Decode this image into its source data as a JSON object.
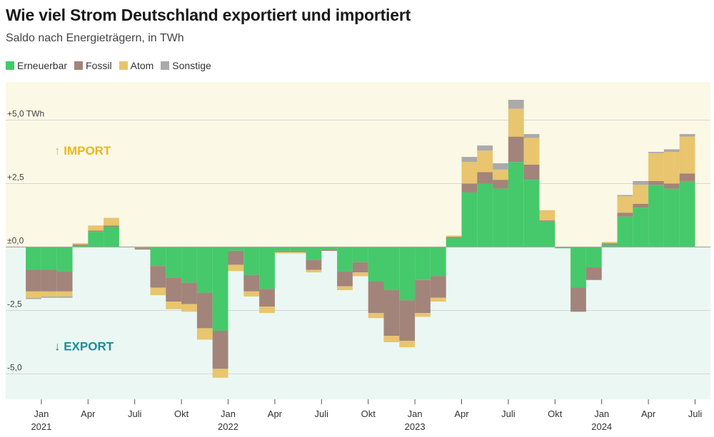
{
  "title": "Wie viel Strom Deutschland exportiert und importiert",
  "subtitle": "Saldo nach Energieträgern, in TWh",
  "colors": {
    "import_bg": "#fcf8e6",
    "export_bg": "#ebf7f3",
    "import_label": "#e8b81c",
    "export_label": "#1e8a9e",
    "grid": "#d6d6d6",
    "zero": "#a8a8a8"
  },
  "chart_data": {
    "type": "bar",
    "stacked": true,
    "ylim": [
      -6.0,
      6.5
    ],
    "yticks": [
      {
        "value": 5.0,
        "label": "+5,0 TWh"
      },
      {
        "value": 2.5,
        "label": "+2,5"
      },
      {
        "value": 0.0,
        "label": "±0,0"
      },
      {
        "value": -2.5,
        "label": "-2,5"
      },
      {
        "value": -5.0,
        "label": "-5,0"
      }
    ],
    "regions": [
      {
        "label": "↑ IMPORT",
        "value": 3.8
      },
      {
        "label": "↓ EXPORT",
        "value": -3.9
      }
    ],
    "months": [
      "2020-12",
      "2021-01",
      "2021-02",
      "2021-03",
      "2021-04",
      "2021-05",
      "2021-06",
      "2021-07",
      "2021-08",
      "2021-09",
      "2021-10",
      "2021-11",
      "2021-12",
      "2022-01",
      "2022-02",
      "2022-03",
      "2022-04",
      "2022-05",
      "2022-06",
      "2022-07",
      "2022-08",
      "2022-09",
      "2022-10",
      "2022-11",
      "2022-12",
      "2023-01",
      "2023-02",
      "2023-03",
      "2023-04",
      "2023-05",
      "2023-06",
      "2023-07",
      "2023-08",
      "2023-09",
      "2023-10",
      "2023-11",
      "2023-12",
      "2024-01",
      "2024-02",
      "2024-03",
      "2024-04",
      "2024-05",
      "2024-06",
      "2024-07"
    ],
    "x_ticks": [
      {
        "label": "Jan",
        "year": "2021",
        "index": 1
      },
      {
        "label": "Apr",
        "year": "",
        "index": 4
      },
      {
        "label": "Juli",
        "year": "",
        "index": 7
      },
      {
        "label": "Okt",
        "year": "",
        "index": 10
      },
      {
        "label": "Jan",
        "year": "2022",
        "index": 13
      },
      {
        "label": "Apr",
        "year": "",
        "index": 16
      },
      {
        "label": "Juli",
        "year": "",
        "index": 19
      },
      {
        "label": "Okt",
        "year": "",
        "index": 22
      },
      {
        "label": "Jan",
        "year": "2023",
        "index": 25
      },
      {
        "label": "Apr",
        "year": "",
        "index": 28
      },
      {
        "label": "Juli",
        "year": "",
        "index": 31
      },
      {
        "label": "Okt",
        "year": "",
        "index": 34
      },
      {
        "label": "Jan",
        "year": "2024",
        "index": 37
      },
      {
        "label": "Apr",
        "year": "",
        "index": 40
      },
      {
        "label": "Juli",
        "year": "",
        "index": 43
      }
    ],
    "legend_position": "top-left",
    "series": [
      {
        "name": "Erneuerbar",
        "color": "#45c96b",
        "values": [
          -0.9,
          -0.9,
          -0.95,
          0.05,
          0.6,
          0.8,
          0.0,
          -0.05,
          -0.75,
          -1.2,
          -1.4,
          -1.8,
          -3.3,
          -0.15,
          -1.1,
          -1.65,
          -0.15,
          -0.15,
          -0.5,
          -0.1,
          -0.95,
          -0.6,
          -1.35,
          -1.7,
          -2.1,
          -1.3,
          -1.15,
          0.35,
          2.15,
          2.5,
          2.3,
          3.35,
          2.65,
          1.0,
          -0.05,
          -1.6,
          -0.8,
          0.1,
          1.2,
          1.55,
          2.45,
          2.3,
          2.6,
          0.0
        ]
      },
      {
        "name": "Fossil",
        "color": "#a3847a",
        "values": [
          -0.85,
          -0.85,
          -0.8,
          0.05,
          0.05,
          0.05,
          0.0,
          -0.05,
          -0.85,
          -0.95,
          -0.85,
          -1.4,
          -1.5,
          -0.55,
          -0.65,
          -0.7,
          -0.05,
          -0.05,
          -0.4,
          -0.05,
          -0.6,
          -0.4,
          -1.25,
          -1.8,
          -1.6,
          -1.3,
          -0.85,
          0.05,
          0.35,
          0.45,
          0.35,
          1.0,
          0.6,
          0.05,
          0.0,
          -0.95,
          -0.5,
          0.05,
          0.15,
          0.15,
          0.15,
          0.2,
          0.3,
          0.0
        ]
      },
      {
        "name": "Atom",
        "color": "#e8c56e",
        "values": [
          -0.25,
          -0.2,
          -0.2,
          0.05,
          0.2,
          0.3,
          0.0,
          0.0,
          -0.3,
          -0.3,
          -0.3,
          -0.45,
          -0.35,
          -0.25,
          -0.2,
          -0.25,
          -0.05,
          -0.05,
          -0.1,
          0.0,
          -0.15,
          -0.15,
          -0.2,
          -0.25,
          -0.25,
          -0.15,
          -0.15,
          0.05,
          0.85,
          0.85,
          0.4,
          1.1,
          1.05,
          0.4,
          0.0,
          0.0,
          0.0,
          0.05,
          0.65,
          0.75,
          1.1,
          1.25,
          1.45,
          0.0
        ]
      },
      {
        "name": "Sonstige",
        "color": "#aaaaaa",
        "values": [
          -0.05,
          -0.05,
          -0.05,
          0.0,
          0.0,
          0.0,
          0.0,
          0.0,
          0.0,
          0.0,
          0.0,
          0.0,
          0.0,
          0.0,
          0.0,
          0.0,
          0.0,
          0.0,
          0.0,
          0.0,
          0.0,
          0.0,
          0.0,
          0.0,
          0.0,
          0.0,
          0.0,
          0.0,
          0.2,
          0.2,
          0.25,
          0.35,
          0.15,
          0.0,
          0.0,
          0.0,
          0.0,
          0.0,
          0.05,
          0.15,
          0.05,
          0.1,
          0.1,
          0.0
        ]
      }
    ]
  }
}
